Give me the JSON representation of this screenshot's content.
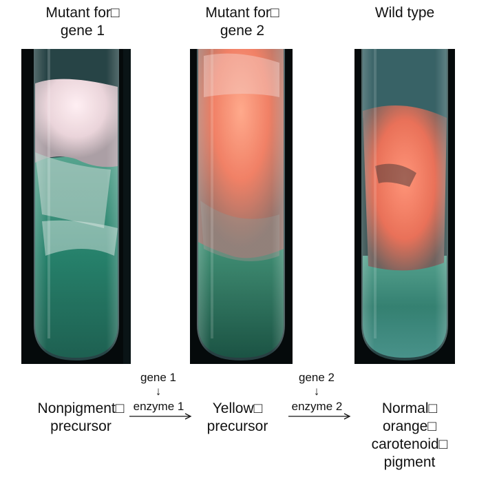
{
  "tubes": [
    {
      "label_lines": [
        "Mutant for□",
        "gene 1"
      ]
    },
    {
      "label_lines": [
        "Mutant for□",
        "gene 2"
      ]
    },
    {
      "label_lines": [
        "Wild type"
      ]
    }
  ],
  "pathway": {
    "compounds": [
      {
        "lines": [
          "Nonpigment□",
          "precursor"
        ]
      },
      {
        "lines": [
          "Yellow□",
          "precursor"
        ]
      },
      {
        "lines": [
          "Normal□",
          "orange□",
          "carotenoid□",
          "pigment"
        ]
      }
    ],
    "steps": [
      {
        "gene": "gene 1",
        "enzyme": "enzyme 1"
      },
      {
        "gene": "gene 2",
        "enzyme": "enzyme 2"
      }
    ]
  },
  "colors": {
    "background_dark": "#050a0b",
    "green_medium": "#1f8a6e",
    "white_mycelium": "#f3e6ea",
    "orange_pigment": "#f07a5e"
  }
}
